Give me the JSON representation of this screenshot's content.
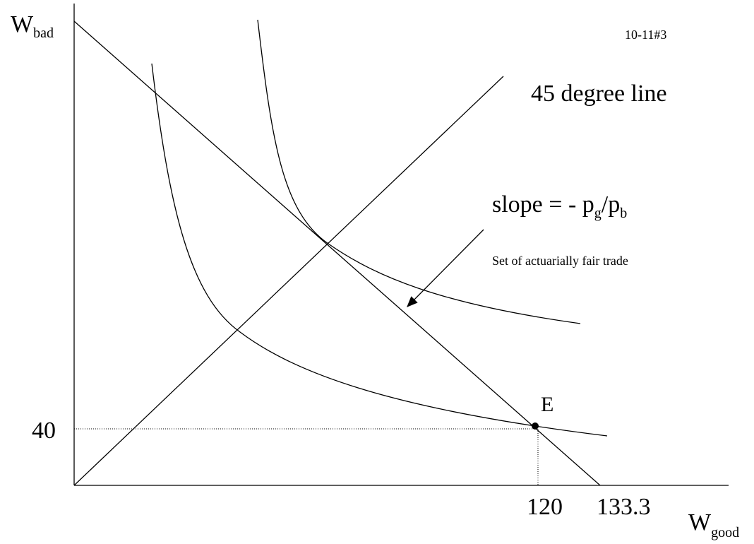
{
  "y_axis": {
    "label": "W",
    "subscript": "bad"
  },
  "x_axis": {
    "label": "W",
    "subscript": "good"
  },
  "id_label": "10-11#3",
  "line_45_label": "45 degree line",
  "slope_label": {
    "text": "slope = - p",
    "sub1": "g",
    "mid": "/p",
    "sub2": "b"
  },
  "budget_note": "Set of actuarially fair trade",
  "point_label": "E",
  "y_value_label": "40",
  "x_value_labels": [
    "120",
    "133.3"
  ]
}
